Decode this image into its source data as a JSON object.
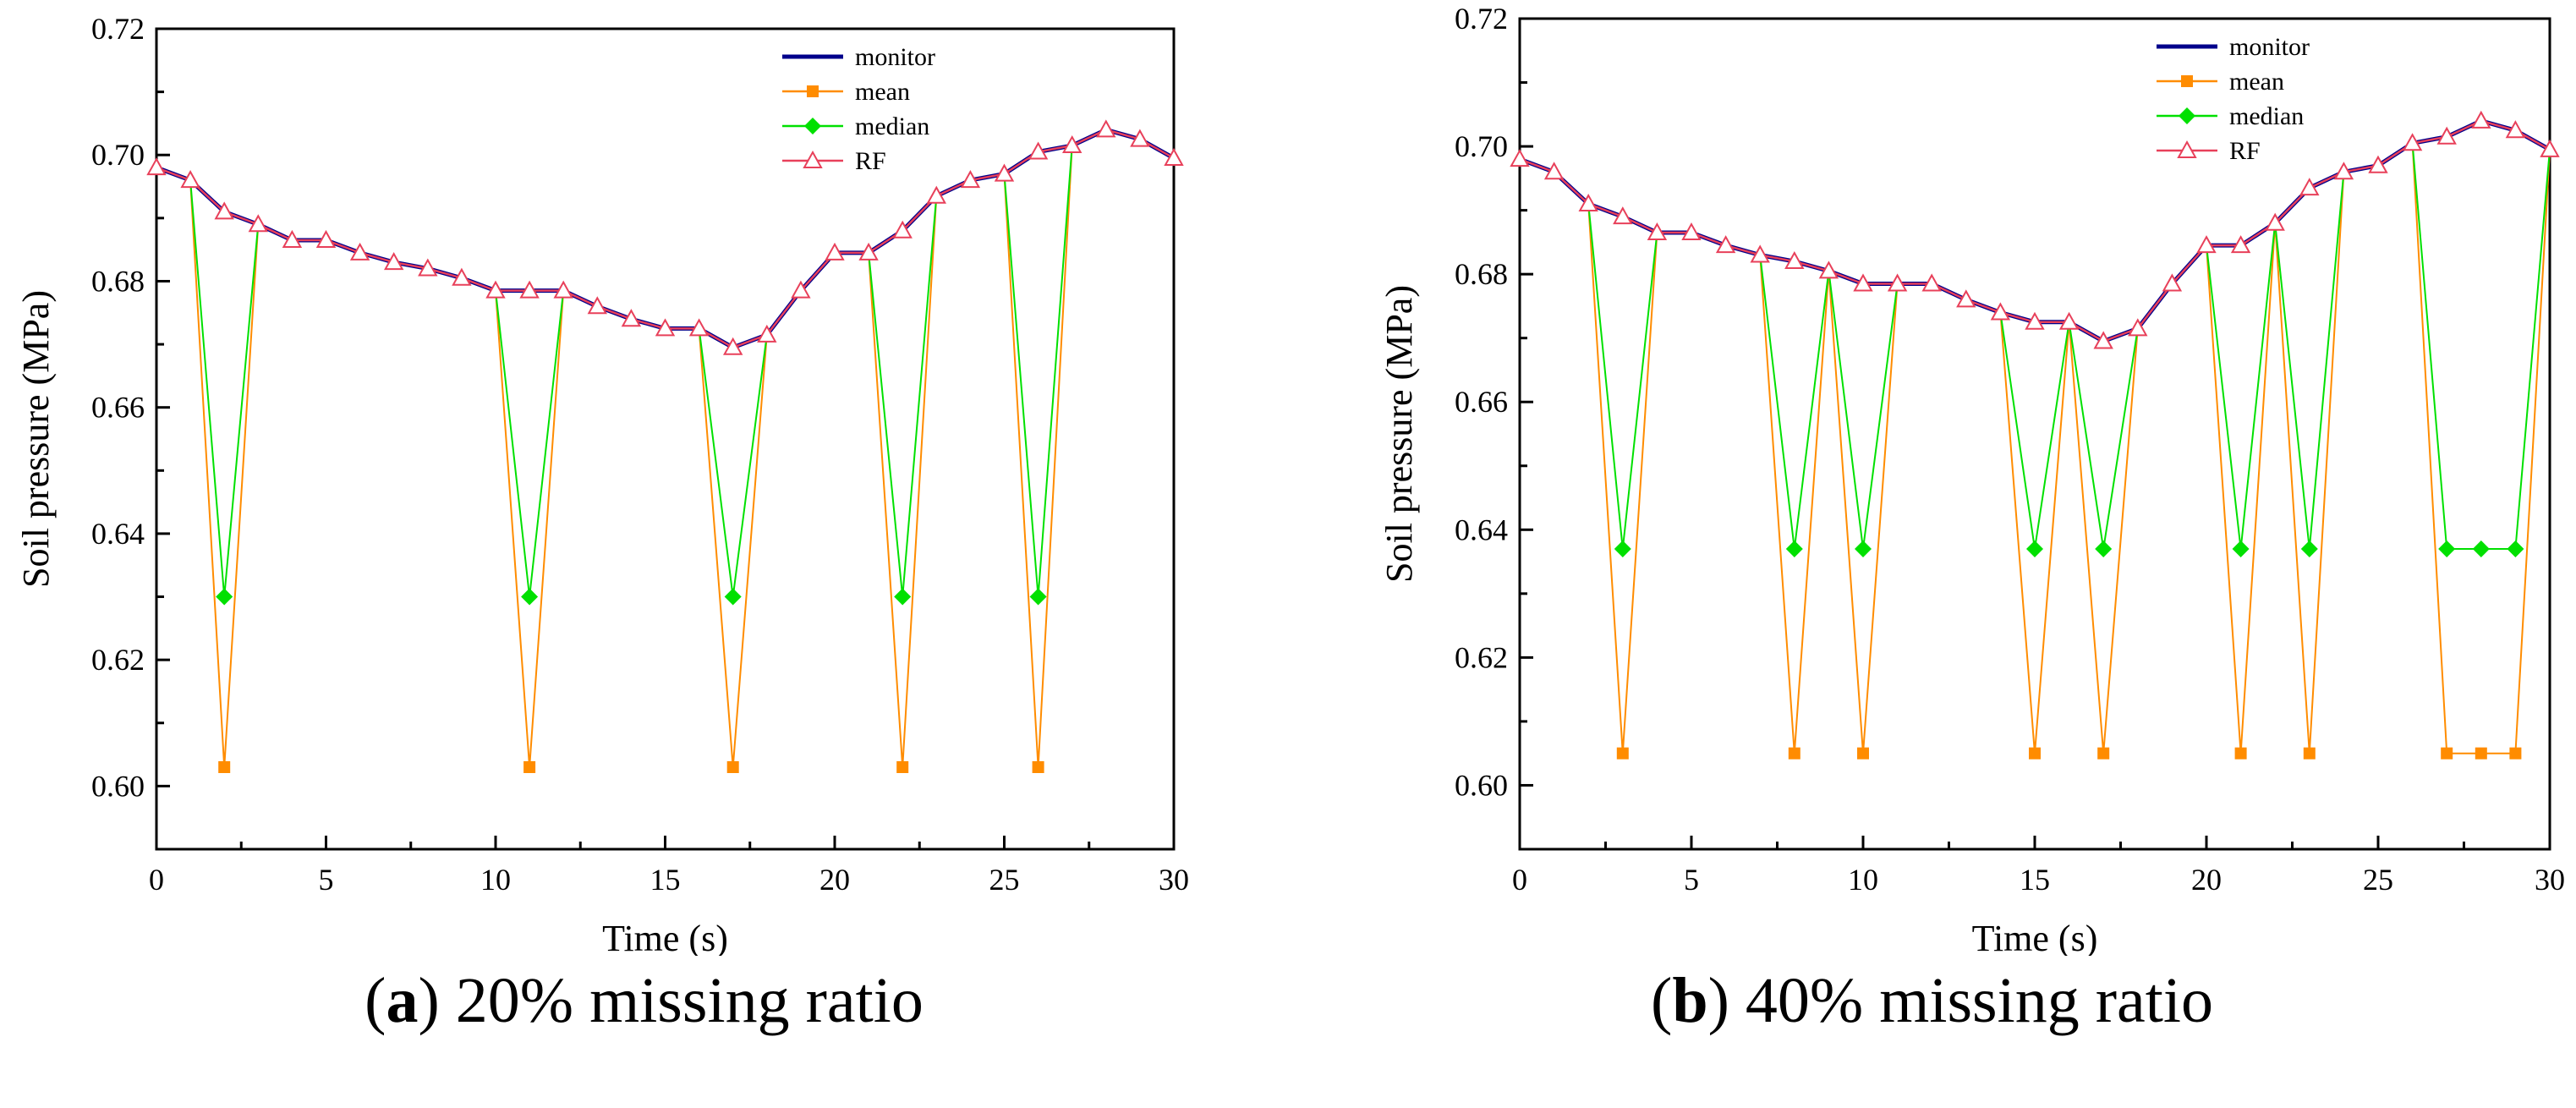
{
  "chart_data": [
    {
      "type": "line",
      "caption_letter": "a",
      "caption_text": "20% missing ratio",
      "xlabel": "Time (s)",
      "ylabel": "Soil pressure (MPa)",
      "xlim": [
        0,
        30
      ],
      "ylim": [
        0.59,
        0.72
      ],
      "xticks": [
        0,
        5,
        10,
        15,
        20,
        25,
        30
      ],
      "yticks": [
        0.6,
        0.62,
        0.64,
        0.66,
        0.68,
        0.7,
        0.72
      ],
      "ytick_labels": [
        "0.60",
        "0.62",
        "0.64",
        "0.66",
        "0.68",
        "0.70",
        "0.72"
      ],
      "grid": false,
      "legend_position": "top-right",
      "series": [
        {
          "name": "monitor",
          "color": "#00008b",
          "marker": "none",
          "x": [
            0,
            1,
            2,
            3,
            4,
            5,
            6,
            7,
            8,
            9,
            10,
            11,
            12,
            13,
            14,
            15,
            16,
            17,
            18,
            19,
            20,
            21,
            22,
            23,
            24,
            25,
            26,
            27,
            28,
            29,
            30
          ],
          "y": [
            0.698,
            0.696,
            0.691,
            0.689,
            0.6865,
            0.6865,
            0.6845,
            0.683,
            0.682,
            0.6805,
            0.6785,
            0.6785,
            0.6785,
            0.676,
            0.674,
            0.6725,
            0.6725,
            0.6695,
            0.6715,
            0.6785,
            0.6845,
            0.6845,
            0.688,
            0.6935,
            0.696,
            0.697,
            0.7005,
            0.7015,
            0.704,
            0.7025,
            0.6995
          ]
        },
        {
          "name": "mean",
          "color": "#ff8c00",
          "marker": "square",
          "x": [
            0,
            1,
            2,
            3,
            4,
            5,
            6,
            7,
            8,
            9,
            10,
            11,
            12,
            13,
            14,
            15,
            16,
            17,
            18,
            19,
            20,
            21,
            22,
            23,
            24,
            25,
            26,
            27,
            28,
            29,
            30
          ],
          "y": [
            0.698,
            0.696,
            0.603,
            0.689,
            0.6865,
            0.6865,
            0.6845,
            0.683,
            0.682,
            0.6805,
            0.6785,
            0.603,
            0.6785,
            0.676,
            0.674,
            0.6725,
            0.6725,
            0.603,
            0.6715,
            0.6785,
            0.6845,
            0.6845,
            0.603,
            0.6935,
            0.696,
            0.697,
            0.603,
            0.7015,
            0.704,
            0.7025,
            0.6995
          ],
          "marker_x": [
            2,
            11,
            17,
            22,
            26
          ]
        },
        {
          "name": "median",
          "color": "#00e000",
          "marker": "diamond",
          "x": [
            0,
            1,
            2,
            3,
            4,
            5,
            6,
            7,
            8,
            9,
            10,
            11,
            12,
            13,
            14,
            15,
            16,
            17,
            18,
            19,
            20,
            21,
            22,
            23,
            24,
            25,
            26,
            27,
            28,
            29,
            30
          ],
          "y": [
            0.698,
            0.696,
            0.63,
            0.689,
            0.6865,
            0.6865,
            0.6845,
            0.683,
            0.682,
            0.6805,
            0.6785,
            0.63,
            0.6785,
            0.676,
            0.674,
            0.6725,
            0.6725,
            0.63,
            0.6715,
            0.6785,
            0.6845,
            0.6845,
            0.63,
            0.6935,
            0.696,
            0.697,
            0.63,
            0.7015,
            0.704,
            0.7025,
            0.6995
          ],
          "marker_x": [
            2,
            11,
            17,
            22,
            26
          ]
        },
        {
          "name": "RF",
          "color": "#e8405a",
          "marker": "triangle",
          "x": [
            0,
            1,
            2,
            3,
            4,
            5,
            6,
            7,
            8,
            9,
            10,
            11,
            12,
            13,
            14,
            15,
            16,
            17,
            18,
            19,
            20,
            21,
            22,
            23,
            24,
            25,
            26,
            27,
            28,
            29,
            30
          ],
          "y": [
            0.698,
            0.696,
            0.691,
            0.689,
            0.6865,
            0.6865,
            0.6845,
            0.683,
            0.682,
            0.6805,
            0.6785,
            0.6785,
            0.6785,
            0.676,
            0.674,
            0.6725,
            0.6725,
            0.6695,
            0.6715,
            0.6785,
            0.6845,
            0.6845,
            0.688,
            0.6935,
            0.696,
            0.697,
            0.7005,
            0.7015,
            0.704,
            0.7025,
            0.6995
          ]
        }
      ]
    },
    {
      "type": "line",
      "caption_letter": "b",
      "caption_text": "40% missing ratio",
      "xlabel": "Time (s)",
      "ylabel": "Soil pressure (MPa)",
      "xlim": [
        0,
        30
      ],
      "ylim": [
        0.59,
        0.72
      ],
      "xticks": [
        0,
        5,
        10,
        15,
        20,
        25,
        30
      ],
      "yticks": [
        0.6,
        0.62,
        0.64,
        0.66,
        0.68,
        0.7,
        0.72
      ],
      "ytick_labels": [
        "0.60",
        "0.62",
        "0.64",
        "0.66",
        "0.68",
        "0.70",
        "0.72"
      ],
      "grid": false,
      "legend_position": "top-right",
      "series": [
        {
          "name": "monitor",
          "color": "#00008b",
          "marker": "none",
          "x": [
            0,
            1,
            2,
            3,
            4,
            5,
            6,
            7,
            8,
            9,
            10,
            11,
            12,
            13,
            14,
            15,
            16,
            17,
            18,
            19,
            20,
            21,
            22,
            23,
            24,
            25,
            26,
            27,
            28,
            29,
            30
          ],
          "y": [
            0.698,
            0.696,
            0.691,
            0.689,
            0.6865,
            0.6865,
            0.6845,
            0.683,
            0.682,
            0.6805,
            0.6785,
            0.6785,
            0.6785,
            0.676,
            0.674,
            0.6725,
            0.6725,
            0.6695,
            0.6715,
            0.6785,
            0.6845,
            0.6845,
            0.688,
            0.6935,
            0.696,
            0.697,
            0.7005,
            0.7015,
            0.704,
            0.7025,
            0.6995
          ]
        },
        {
          "name": "mean",
          "color": "#ff8c00",
          "marker": "square",
          "x": [
            0,
            1,
            2,
            3,
            4,
            5,
            6,
            7,
            8,
            9,
            10,
            11,
            12,
            13,
            14,
            15,
            16,
            17,
            18,
            19,
            20,
            21,
            22,
            23,
            24,
            25,
            26,
            27,
            28,
            29,
            30
          ],
          "y": [
            0.698,
            0.696,
            0.691,
            0.605,
            0.6865,
            0.6865,
            0.6845,
            0.683,
            0.605,
            0.6805,
            0.605,
            0.6785,
            0.6785,
            0.676,
            0.674,
            0.605,
            0.6725,
            0.605,
            0.6715,
            0.6785,
            0.6845,
            0.605,
            0.688,
            0.605,
            0.696,
            0.697,
            0.7005,
            0.605,
            0.605,
            0.605,
            0.6995
          ],
          "marker_x": [
            3,
            8,
            10,
            15,
            17,
            21,
            23,
            27,
            28,
            29
          ]
        },
        {
          "name": "median",
          "color": "#00e000",
          "marker": "diamond",
          "x": [
            0,
            1,
            2,
            3,
            4,
            5,
            6,
            7,
            8,
            9,
            10,
            11,
            12,
            13,
            14,
            15,
            16,
            17,
            18,
            19,
            20,
            21,
            22,
            23,
            24,
            25,
            26,
            27,
            28,
            29,
            30
          ],
          "y": [
            0.698,
            0.696,
            0.691,
            0.637,
            0.6865,
            0.6865,
            0.6845,
            0.683,
            0.637,
            0.6805,
            0.637,
            0.6785,
            0.6785,
            0.676,
            0.674,
            0.637,
            0.6725,
            0.637,
            0.6715,
            0.6785,
            0.6845,
            0.637,
            0.688,
            0.637,
            0.696,
            0.697,
            0.7005,
            0.637,
            0.637,
            0.637,
            0.6995
          ],
          "marker_x": [
            3,
            8,
            10,
            15,
            17,
            21,
            23,
            27,
            28,
            29
          ]
        },
        {
          "name": "RF",
          "color": "#e8405a",
          "marker": "triangle",
          "x": [
            0,
            1,
            2,
            3,
            4,
            5,
            6,
            7,
            8,
            9,
            10,
            11,
            12,
            13,
            14,
            15,
            16,
            17,
            18,
            19,
            20,
            21,
            22,
            23,
            24,
            25,
            26,
            27,
            28,
            29,
            30
          ],
          "y": [
            0.698,
            0.696,
            0.691,
            0.689,
            0.6865,
            0.6865,
            0.6845,
            0.683,
            0.682,
            0.6805,
            0.6785,
            0.6785,
            0.6785,
            0.676,
            0.674,
            0.6725,
            0.6725,
            0.6695,
            0.6715,
            0.6785,
            0.6845,
            0.6845,
            0.688,
            0.6935,
            0.696,
            0.697,
            0.7005,
            0.7015,
            0.704,
            0.7025,
            0.6995
          ]
        }
      ]
    }
  ]
}
